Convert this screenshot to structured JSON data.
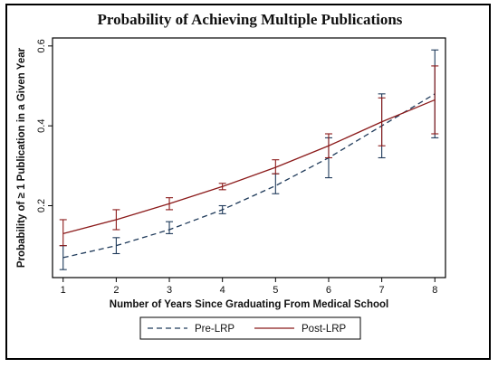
{
  "chart_data": {
    "type": "line",
    "title": "Probability of Achieving Multiple Publications",
    "xlabel": "Number of Years Since Graduating From Medical School",
    "ylabel": "Probability of ≥ 1 Publication in a Given Year",
    "x": [
      1,
      2,
      3,
      4,
      5,
      6,
      7,
      8
    ],
    "xlim": [
      0.8,
      8.2
    ],
    "ylim": [
      0.02,
      0.62
    ],
    "xticks": [
      "1",
      "2",
      "3",
      "4",
      "5",
      "6",
      "7",
      "8"
    ],
    "yticks": [
      {
        "value": 0.2,
        "label": "0.2"
      },
      {
        "value": 0.4,
        "label": "0.4"
      },
      {
        "value": 0.6,
        "label": "0.6"
      }
    ],
    "grid": false,
    "legend_position": "bottom",
    "series": [
      {
        "name": "Pre-LRP",
        "color": "#1f3a5a",
        "dash": "dashed",
        "values": [
          0.07,
          0.1,
          0.14,
          0.19,
          0.25,
          0.32,
          0.4,
          0.48
        ],
        "ci_low": [
          0.04,
          0.08,
          0.13,
          0.18,
          0.23,
          0.27,
          0.32,
          0.37
        ],
        "ci_high": [
          0.1,
          0.12,
          0.16,
          0.2,
          0.28,
          0.37,
          0.48,
          0.59
        ]
      },
      {
        "name": "Post-LRP",
        "color": "#8b1a1a",
        "dash": "solid",
        "values": [
          0.13,
          0.165,
          0.205,
          0.248,
          0.296,
          0.35,
          0.41,
          0.465
        ],
        "ci_low": [
          0.1,
          0.14,
          0.19,
          0.24,
          0.28,
          0.32,
          0.35,
          0.38
        ],
        "ci_high": [
          0.165,
          0.19,
          0.22,
          0.256,
          0.315,
          0.38,
          0.47,
          0.55
        ]
      }
    ]
  }
}
